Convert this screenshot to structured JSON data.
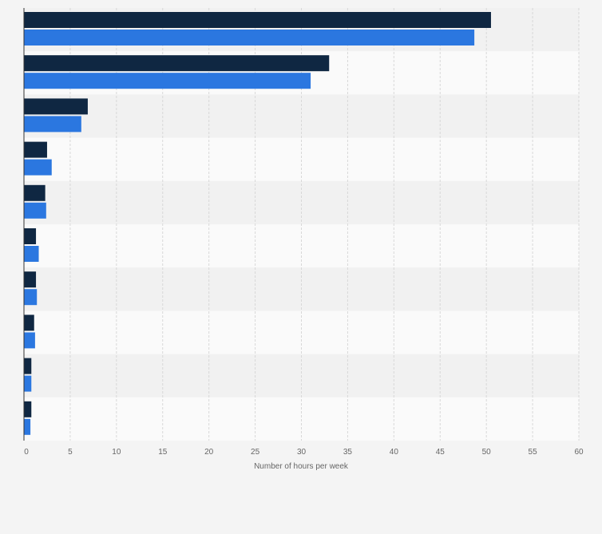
{
  "chart_data": {
    "type": "bar",
    "orientation": "horizontal",
    "categories": [
      "",
      "",
      "",
      "",
      "",
      "",
      "",
      "",
      "",
      ""
    ],
    "series": [
      {
        "color": "#0f2742",
        "values": [
          50.5,
          33.0,
          6.9,
          2.5,
          2.3,
          1.3,
          1.3,
          1.1,
          0.8,
          0.8
        ]
      },
      {
        "color": "#2b77e0",
        "values": [
          48.7,
          31.0,
          6.2,
          3.0,
          2.4,
          1.6,
          1.4,
          1.2,
          0.8,
          0.7
        ]
      }
    ],
    "xlabel": "Number of hours per week",
    "ylabel": "",
    "xlim": [
      0,
      60
    ],
    "xticks": [
      0,
      5,
      10,
      15,
      20,
      25,
      30,
      35,
      40,
      45,
      50,
      55,
      60
    ],
    "grid": true,
    "legend": "none"
  }
}
